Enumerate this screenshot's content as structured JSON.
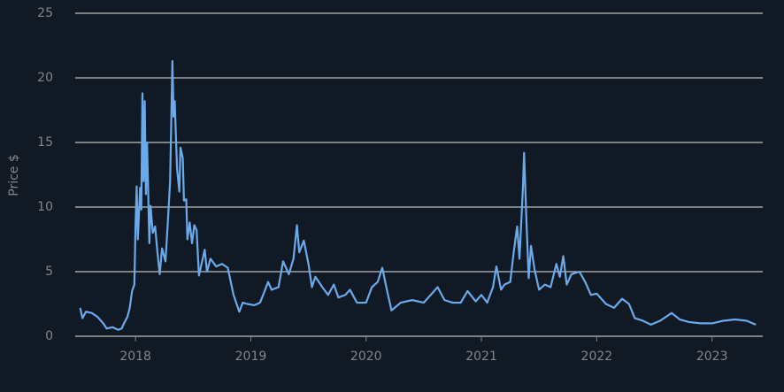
{
  "chart_data": {
    "type": "line",
    "y_label": "Price $",
    "x": [
      2017.52,
      2017.54,
      2017.57,
      2017.62,
      2017.67,
      2017.72,
      2017.75,
      2017.8,
      2017.85,
      2017.88,
      2017.9,
      2017.93,
      2017.95,
      2017.97,
      2017.99,
      2018.0,
      2018.01,
      2018.02,
      2018.04,
      2018.05,
      2018.06,
      2018.07,
      2018.08,
      2018.09,
      2018.1,
      2018.12,
      2018.13,
      2018.15,
      2018.17,
      2018.19,
      2018.21,
      2018.23,
      2018.26,
      2018.28,
      2018.3,
      2018.32,
      2018.33,
      2018.34,
      2018.36,
      2018.38,
      2018.39,
      2018.41,
      2018.42,
      2018.44,
      2018.45,
      2018.47,
      2018.49,
      2018.51,
      2018.53,
      2018.55,
      2018.57,
      2018.6,
      2018.62,
      2018.65,
      2018.7,
      2018.75,
      2018.8,
      2018.85,
      2018.9,
      2018.93,
      2018.97,
      2019.03,
      2019.08,
      2019.12,
      2019.15,
      2019.18,
      2019.24,
      2019.28,
      2019.33,
      2019.37,
      2019.4,
      2019.42,
      2019.46,
      2019.5,
      2019.53,
      2019.56,
      2019.62,
      2019.67,
      2019.72,
      2019.76,
      2019.82,
      2019.86,
      2019.92,
      2020.0,
      2020.05,
      2020.1,
      2020.14,
      2020.18,
      2020.22,
      2020.3,
      2020.4,
      2020.5,
      2020.58,
      2020.62,
      2020.68,
      2020.75,
      2020.82,
      2020.88,
      2020.95,
      2021.0,
      2021.05,
      2021.1,
      2021.13,
      2021.17,
      2021.2,
      2021.25,
      2021.28,
      2021.31,
      2021.33,
      2021.36,
      2021.37,
      2021.39,
      2021.41,
      2021.43,
      2021.46,
      2021.5,
      2021.55,
      2021.6,
      2021.65,
      2021.68,
      2021.71,
      2021.74,
      2021.78,
      2021.85,
      2021.9,
      2021.95,
      2022.0,
      2022.08,
      2022.15,
      2022.22,
      2022.28,
      2022.33,
      2022.4,
      2022.47,
      2022.55,
      2022.65,
      2022.72,
      2022.8,
      2022.9,
      2023.0,
      2023.1,
      2023.2,
      2023.3,
      2023.38
    ],
    "series": [
      {
        "color": "#6aaaec",
        "values": [
          2.2,
          1.4,
          1.9,
          1.8,
          1.5,
          1.0,
          0.6,
          0.7,
          0.5,
          0.6,
          1.0,
          1.5,
          2.2,
          3.5,
          4.0,
          8.5,
          11.6,
          7.5,
          11.5,
          9.8,
          18.8,
          12,
          18.2,
          11,
          15,
          7.2,
          10.1,
          8,
          8.5,
          6.5,
          4.8,
          6.8,
          5.8,
          8.8,
          12,
          21.3,
          17,
          18.2,
          13,
          11.2,
          14.6,
          13.8,
          10.5,
          10.6,
          7.5,
          8.8,
          7.2,
          8.6,
          8.2,
          4.7,
          5.5,
          6.7,
          5.0,
          6.0,
          5.4,
          5.6,
          5.3,
          3.2,
          1.9,
          2.6,
          2.5,
          2.4,
          2.6,
          3.5,
          4.2,
          3.6,
          3.8,
          5.8,
          4.8,
          6.0,
          8.6,
          6.5,
          7.4,
          5.6,
          3.8,
          4.6,
          3.8,
          3.2,
          4.0,
          3.0,
          3.2,
          3.6,
          2.6,
          2.6,
          3.8,
          4.2,
          5.3,
          3.6,
          2.0,
          2.6,
          2.8,
          2.6,
          3.4,
          3.8,
          2.8,
          2.6,
          2.6,
          3.5,
          2.7,
          3.2,
          2.6,
          3.8,
          5.4,
          3.6,
          4.0,
          4.2,
          6.5,
          8.5,
          6.0,
          11.5,
          14.2,
          9,
          4.5,
          7,
          5.2,
          3.6,
          4.0,
          3.8,
          5.6,
          4.6,
          6.2,
          4.0,
          4.8,
          5.0,
          4.2,
          3.2,
          3.3,
          2.5,
          2.2,
          2.9,
          2.5,
          1.4,
          1.2,
          0.9,
          1.2,
          1.8,
          1.3,
          1.1,
          1.0,
          1.0,
          1.2,
          1.3,
          1.2,
          0.9
        ]
      }
    ],
    "xlim": [
      2017.477,
      2023.44
    ],
    "xticks": [
      2018,
      2019,
      2020,
      2021,
      2022,
      2023
    ],
    "ylim": [
      0,
      25
    ],
    "yticks": [
      0,
      5,
      10,
      15,
      20,
      25
    ],
    "grid": true
  }
}
